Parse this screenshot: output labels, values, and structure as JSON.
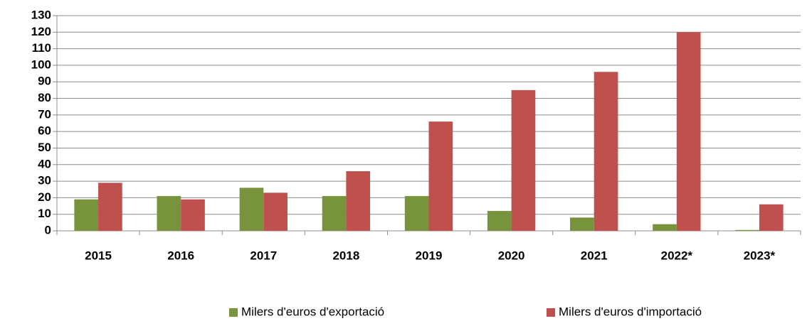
{
  "chart_data": {
    "type": "bar",
    "categories": [
      "2015",
      "2016",
      "2017",
      "2018",
      "2019",
      "2020",
      "2021",
      "2022*",
      "2023*"
    ],
    "series": [
      {
        "name": "Milers d'euros d'exportació",
        "color": "#77933c",
        "values": [
          19,
          21,
          26,
          21,
          21,
          12,
          8,
          4,
          0.5
        ]
      },
      {
        "name": "Milers d'euros d'importació",
        "color": "#c0504d",
        "values": [
          29,
          19,
          23,
          36,
          66,
          85,
          96,
          120,
          16
        ]
      }
    ],
    "ylim": [
      0,
      130
    ],
    "yticks": [
      0,
      10,
      20,
      30,
      40,
      50,
      60,
      70,
      80,
      90,
      100,
      110,
      120,
      130
    ],
    "grid": true,
    "legend": "bottom"
  }
}
